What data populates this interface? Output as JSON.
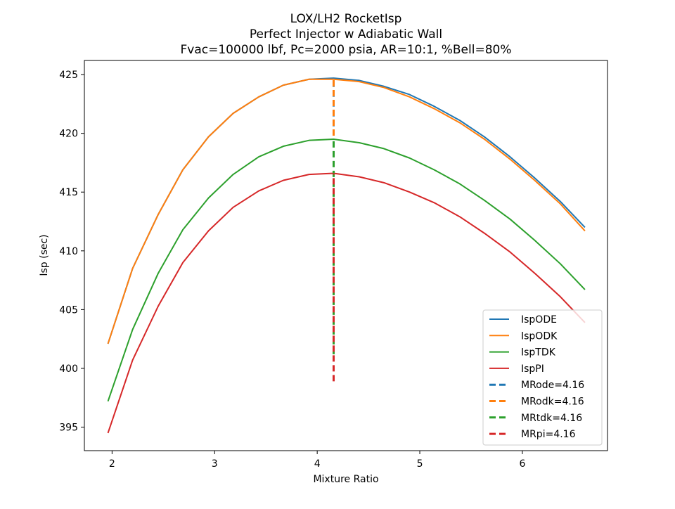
{
  "chart_data": {
    "type": "line",
    "title": [
      "LOX/LH2 RocketIsp",
      "Perfect Injector w Adiabatic Wall",
      "Fvac=100000 lbf, Pc=2000 psia, AR=10:1, %Bell=80%"
    ],
    "xlabel": "Mixture Ratio",
    "ylabel": "Isp (sec)",
    "xlim": [
      1.73,
      6.83
    ],
    "ylim": [
      393.0,
      426.2
    ],
    "xticks": [
      2,
      3,
      4,
      5,
      6
    ],
    "yticks": [
      395,
      400,
      405,
      410,
      415,
      420,
      425
    ],
    "grid": false,
    "legend_position": "lower-right",
    "x": [
      1.96,
      2.2,
      2.45,
      2.69,
      2.94,
      3.18,
      3.43,
      3.67,
      3.92,
      4.16,
      4.41,
      4.65,
      4.9,
      5.14,
      5.39,
      5.63,
      5.88,
      6.12,
      6.37,
      6.61
    ],
    "series": [
      {
        "name": "IspODE",
        "color": "#1f77b4",
        "values": [
          402.1,
          408.5,
          413.1,
          416.9,
          419.7,
          421.7,
          423.1,
          424.1,
          424.6,
          424.7,
          424.5,
          424.0,
          423.3,
          422.3,
          421.1,
          419.7,
          418.0,
          416.2,
          414.2,
          412.0
        ]
      },
      {
        "name": "IspODK",
        "color": "#ff7f0e",
        "values": [
          402.1,
          408.5,
          413.1,
          416.9,
          419.7,
          421.7,
          423.1,
          424.1,
          424.6,
          424.6,
          424.4,
          423.9,
          423.1,
          422.1,
          420.9,
          419.5,
          417.8,
          416.0,
          414.0,
          411.7
        ]
      },
      {
        "name": "IspTDK",
        "color": "#2ca02c",
        "values": [
          397.2,
          403.3,
          408.1,
          411.8,
          414.5,
          416.5,
          418.0,
          418.9,
          419.4,
          419.5,
          419.2,
          418.7,
          417.9,
          416.9,
          415.7,
          414.3,
          412.7,
          410.9,
          408.9,
          406.7
        ]
      },
      {
        "name": "IspPI",
        "color": "#d62728",
        "values": [
          394.5,
          400.7,
          405.3,
          409.0,
          411.7,
          413.7,
          415.1,
          416.0,
          416.5,
          416.6,
          416.3,
          415.8,
          415.0,
          414.1,
          412.9,
          411.5,
          409.9,
          408.1,
          406.1,
          403.9
        ]
      }
    ],
    "vlines": [
      {
        "name": "MRode=4.16",
        "color": "#1f77b4",
        "x": 4.16,
        "y": [
          420.6,
          424.7
        ]
      },
      {
        "name": "MRodk=4.16",
        "color": "#ff7f0e",
        "x": 4.16,
        "y": [
          419.8,
          424.6
        ]
      },
      {
        "name": "MRtdk=4.16",
        "color": "#2ca02c",
        "x": 4.16,
        "y": [
          401.2,
          419.5
        ]
      },
      {
        "name": "MRpi=4.16",
        "color": "#d62728",
        "x": 4.16,
        "y": [
          398.9,
          416.6
        ]
      }
    ]
  }
}
